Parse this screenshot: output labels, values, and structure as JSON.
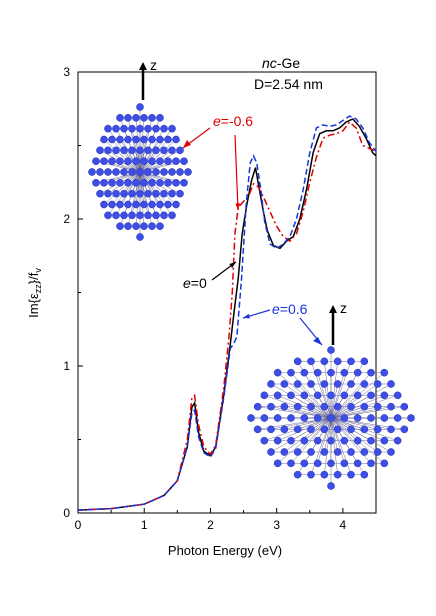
{
  "chart_data": {
    "type": "line",
    "title": "",
    "inset_title_italic": "nc",
    "inset_title_rest": "-Ge",
    "inset_subtitle": "D=2.54 nm",
    "xlabel": "Photon Energy (eV)",
    "ylabel_parts": {
      "base": "Im{ε",
      "sub1": "zz",
      "mid": "}/f",
      "sub2": "v"
    },
    "xlim": [
      0,
      4.5
    ],
    "ylim": [
      0,
      3
    ],
    "x_ticks": [
      "0",
      "1",
      "2",
      "3",
      "4"
    ],
    "y_ticks": [
      "0",
      "1",
      "2",
      "3"
    ],
    "grid": false,
    "series": [
      {
        "name": "e=0",
        "color": "#000000",
        "style": "solid",
        "points": [
          [
            0,
            0.02
          ],
          [
            0.5,
            0.03
          ],
          [
            1.0,
            0.06
          ],
          [
            1.3,
            0.12
          ],
          [
            1.5,
            0.22
          ],
          [
            1.65,
            0.45
          ],
          [
            1.72,
            0.72
          ],
          [
            1.76,
            0.75
          ],
          [
            1.82,
            0.55
          ],
          [
            1.9,
            0.42
          ],
          [
            2.0,
            0.39
          ],
          [
            2.08,
            0.45
          ],
          [
            2.2,
            0.8
          ],
          [
            2.3,
            1.15
          ],
          [
            2.36,
            1.38
          ],
          [
            2.42,
            1.6
          ],
          [
            2.48,
            1.9
          ],
          [
            2.55,
            2.1
          ],
          [
            2.62,
            2.26
          ],
          [
            2.68,
            2.35
          ],
          [
            2.74,
            2.2
          ],
          [
            2.8,
            2.05
          ],
          [
            2.86,
            1.92
          ],
          [
            2.95,
            1.82
          ],
          [
            3.05,
            1.8
          ],
          [
            3.15,
            1.85
          ],
          [
            3.25,
            1.88
          ],
          [
            3.35,
            2.0
          ],
          [
            3.45,
            2.2
          ],
          [
            3.55,
            2.45
          ],
          [
            3.65,
            2.58
          ],
          [
            3.75,
            2.6
          ],
          [
            3.85,
            2.6
          ],
          [
            3.95,
            2.62
          ],
          [
            4.05,
            2.66
          ],
          [
            4.15,
            2.68
          ],
          [
            4.25,
            2.63
          ],
          [
            4.35,
            2.55
          ],
          [
            4.45,
            2.45
          ],
          [
            4.5,
            2.43
          ]
        ]
      },
      {
        "name": "e=-0.6",
        "color": "#dd0000",
        "style": "dashdot",
        "points": [
          [
            0,
            0.02
          ],
          [
            0.5,
            0.03
          ],
          [
            1.0,
            0.06
          ],
          [
            1.3,
            0.12
          ],
          [
            1.5,
            0.22
          ],
          [
            1.65,
            0.5
          ],
          [
            1.72,
            0.78
          ],
          [
            1.76,
            0.8
          ],
          [
            1.82,
            0.6
          ],
          [
            1.9,
            0.45
          ],
          [
            2.0,
            0.4
          ],
          [
            2.08,
            0.46
          ],
          [
            2.2,
            0.85
          ],
          [
            2.28,
            1.2
          ],
          [
            2.33,
            1.5
          ],
          [
            2.37,
            1.9
          ],
          [
            2.42,
            2.08
          ],
          [
            2.5,
            2.12
          ],
          [
            2.58,
            2.16
          ],
          [
            2.65,
            2.24
          ],
          [
            2.72,
            2.22
          ],
          [
            2.8,
            2.15
          ],
          [
            2.9,
            2.05
          ],
          [
            3.0,
            1.95
          ],
          [
            3.1,
            1.88
          ],
          [
            3.2,
            1.85
          ],
          [
            3.3,
            1.9
          ],
          [
            3.4,
            2.05
          ],
          [
            3.5,
            2.25
          ],
          [
            3.6,
            2.42
          ],
          [
            3.7,
            2.55
          ],
          [
            3.8,
            2.57
          ],
          [
            3.9,
            2.58
          ],
          [
            4.0,
            2.6
          ],
          [
            4.1,
            2.66
          ],
          [
            4.2,
            2.62
          ],
          [
            4.3,
            2.5
          ],
          [
            4.4,
            2.48
          ],
          [
            4.5,
            2.46
          ]
        ]
      },
      {
        "name": "e=0.6",
        "color": "#1a33dd",
        "style": "dashed",
        "points": [
          [
            0,
            0.02
          ],
          [
            0.5,
            0.03
          ],
          [
            1.0,
            0.06
          ],
          [
            1.3,
            0.12
          ],
          [
            1.5,
            0.22
          ],
          [
            1.65,
            0.45
          ],
          [
            1.72,
            0.68
          ],
          [
            1.76,
            0.7
          ],
          [
            1.82,
            0.52
          ],
          [
            1.9,
            0.41
          ],
          [
            2.0,
            0.38
          ],
          [
            2.08,
            0.44
          ],
          [
            2.2,
            0.78
          ],
          [
            2.3,
            1.12
          ],
          [
            2.35,
            1.15
          ],
          [
            2.4,
            1.2
          ],
          [
            2.47,
            1.6
          ],
          [
            2.54,
            2.1
          ],
          [
            2.6,
            2.38
          ],
          [
            2.65,
            2.43
          ],
          [
            2.7,
            2.38
          ],
          [
            2.76,
            2.2
          ],
          [
            2.82,
            1.98
          ],
          [
            2.9,
            1.83
          ],
          [
            3.0,
            1.8
          ],
          [
            3.1,
            1.83
          ],
          [
            3.2,
            1.88
          ],
          [
            3.3,
            2.0
          ],
          [
            3.4,
            2.2
          ],
          [
            3.5,
            2.45
          ],
          [
            3.6,
            2.62
          ],
          [
            3.7,
            2.64
          ],
          [
            3.8,
            2.63
          ],
          [
            3.9,
            2.64
          ],
          [
            4.0,
            2.67
          ],
          [
            4.1,
            2.7
          ],
          [
            4.2,
            2.68
          ],
          [
            4.3,
            2.62
          ],
          [
            4.4,
            2.52
          ],
          [
            4.5,
            2.46
          ]
        ]
      }
    ],
    "annotations": [
      {
        "label": "e=-0.6",
        "var": "e",
        "rest": "=-0.6",
        "color": "#dd0000"
      },
      {
        "label": "e=0",
        "var": "e",
        "rest": "=0",
        "color": "#000000"
      },
      {
        "label": "e=0.6",
        "var": "e",
        "rest": "=0.6",
        "color": "#1a33dd"
      }
    ],
    "inset_images": [
      {
        "name": "nanocrystal-top-left",
        "axis_label": "z",
        "atom_color": "#3d4ee8"
      },
      {
        "name": "nanocrystal-bottom-right",
        "axis_label": "z",
        "atom_color": "#3d4ee8"
      }
    ]
  }
}
